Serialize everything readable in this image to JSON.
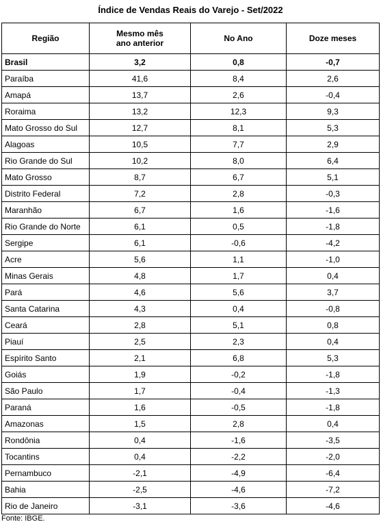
{
  "title": "Índice de Vendas Reais do Varejo - Set/2022",
  "table": {
    "header": [
      "Região",
      "Mesmo mês ano anterior",
      "No Ano",
      "Doze meses"
    ],
    "rows": [
      [
        "Brasil",
        "3,2",
        "0,8",
        "-0,7"
      ],
      [
        "Paraíba",
        "41,6",
        "8,4",
        "2,6"
      ],
      [
        "Amapá",
        "13,7",
        "2,6",
        "-0,4"
      ],
      [
        "Roraima",
        "13,2",
        "12,3",
        "9,3"
      ],
      [
        "Mato Grosso do Sul",
        "12,7",
        "8,1",
        "5,3"
      ],
      [
        "Alagoas",
        "10,5",
        "7,7",
        "2,9"
      ],
      [
        "Rio Grande do Sul",
        "10,2",
        "8,0",
        "6,4"
      ],
      [
        "Mato Grosso",
        "8,7",
        "6,7",
        "5,1"
      ],
      [
        "Distrito Federal",
        "7,2",
        "2,8",
        "-0,3"
      ],
      [
        "Maranhão",
        "6,7",
        "1,6",
        "-1,6"
      ],
      [
        "Rio Grande do Norte",
        "6,1",
        "0,5",
        "-1,8"
      ],
      [
        "Sergipe",
        "6,1",
        "-0,6",
        "-4,2"
      ],
      [
        "Acre",
        "5,6",
        "1,1",
        "-1,0"
      ],
      [
        "Minas Gerais",
        "4,8",
        "1,7",
        "0,4"
      ],
      [
        "Pará",
        "4,6",
        "5,6",
        "3,7"
      ],
      [
        "Santa Catarina",
        "4,3",
        "0,4",
        "-0,8"
      ],
      [
        "Ceará",
        "2,8",
        "5,1",
        "0,8"
      ],
      [
        "Piauí",
        "2,5",
        "2,3",
        "0,4"
      ],
      [
        "Espírito Santo",
        "2,1",
        "6,8",
        "5,3"
      ],
      [
        "Goiás",
        "1,9",
        "-0,2",
        "-1,8"
      ],
      [
        "São Paulo",
        "1,7",
        "-0,4",
        "-1,3"
      ],
      [
        "Paraná",
        "1,6",
        "-0,5",
        "-1,8"
      ],
      [
        "Amazonas",
        "1,5",
        "2,8",
        "0,4"
      ],
      [
        "Rondônia",
        "0,4",
        "-1,6",
        "-3,5"
      ],
      [
        "Tocantins",
        "0,4",
        "-2,2",
        "-2,0"
      ],
      [
        "Pernambuco",
        "-2,1",
        "-4,9",
        "-6,4"
      ],
      [
        "Bahia",
        "-2,5",
        "-4,6",
        "-7,2"
      ],
      [
        "Rio de Janeiro",
        "-3,1",
        "-3,6",
        "-4,6"
      ]
    ]
  },
  "source": "Fonte: IBGE."
}
